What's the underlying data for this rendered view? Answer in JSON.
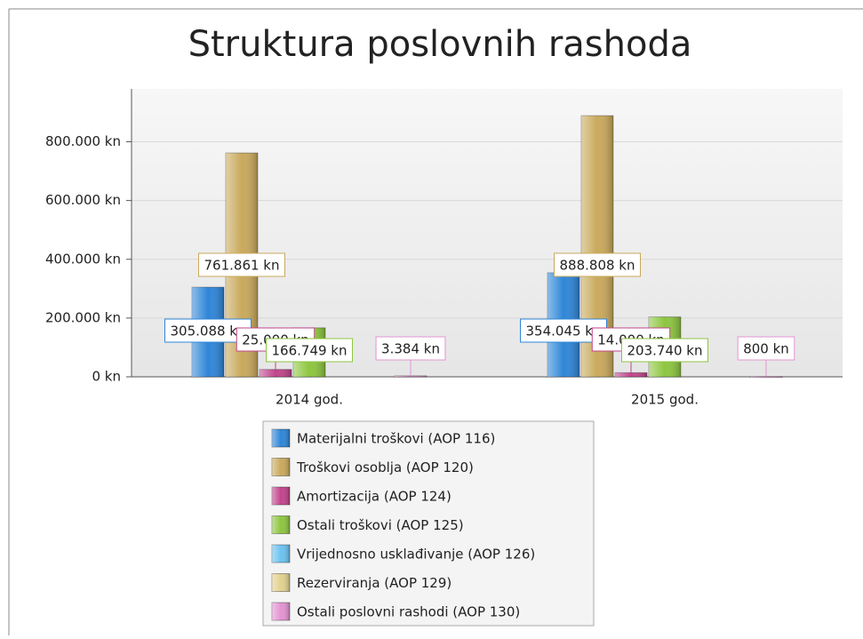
{
  "chart_data": {
    "type": "bar",
    "title": "Struktura poslovnih rashoda",
    "categories": [
      "2014 god.",
      "2015 god."
    ],
    "series": [
      {
        "name": "Materijalni troškovi (AOP 116)",
        "color": "#2f86d8",
        "values": [
          305088,
          354045
        ],
        "value_labels": [
          "305.088 kn",
          "354.045 kn"
        ]
      },
      {
        "name": "Troškovi osoblja (AOP 120)",
        "color": "#c9a95c",
        "values": [
          761861,
          888808
        ],
        "value_labels": [
          "761.861 kn",
          "888.808 kn"
        ]
      },
      {
        "name": "Amortizacija (AOP 124)",
        "color": "#c2448c",
        "values": [
          25000,
          14000
        ],
        "value_labels": [
          "25.000 kn",
          "14.000 kn"
        ]
      },
      {
        "name": "Ostali troškovi (AOP 125)",
        "color": "#8dc640",
        "values": [
          166749,
          203740
        ],
        "value_labels": [
          "166.749 kn",
          "203.740 kn"
        ]
      },
      {
        "name": "Vrijednosno usklađivanje (AOP 126)",
        "color": "#6cc2f0",
        "values": [
          null,
          null
        ],
        "value_labels": [
          null,
          null
        ]
      },
      {
        "name": "Rezerviranja (AOP 129)",
        "color": "#e2d18e",
        "values": [
          null,
          null
        ],
        "value_labels": [
          null,
          null
        ]
      },
      {
        "name": "Ostali poslovni rashodi (AOP 130)",
        "color": "#e394d2",
        "values": [
          3384,
          800
        ],
        "value_labels": [
          "3.384 kn",
          "800 kn"
        ]
      }
    ],
    "ylim": [
      0,
      980000
    ],
    "yticks": [
      {
        "value": 0,
        "label": "0 kn"
      },
      {
        "value": 200000,
        "label": "200.000 kn"
      },
      {
        "value": 400000,
        "label": "400.000 kn"
      },
      {
        "value": 600000,
        "label": "600.000 kn"
      },
      {
        "value": 800000,
        "label": "800.000 kn"
      }
    ],
    "grid": true
  }
}
